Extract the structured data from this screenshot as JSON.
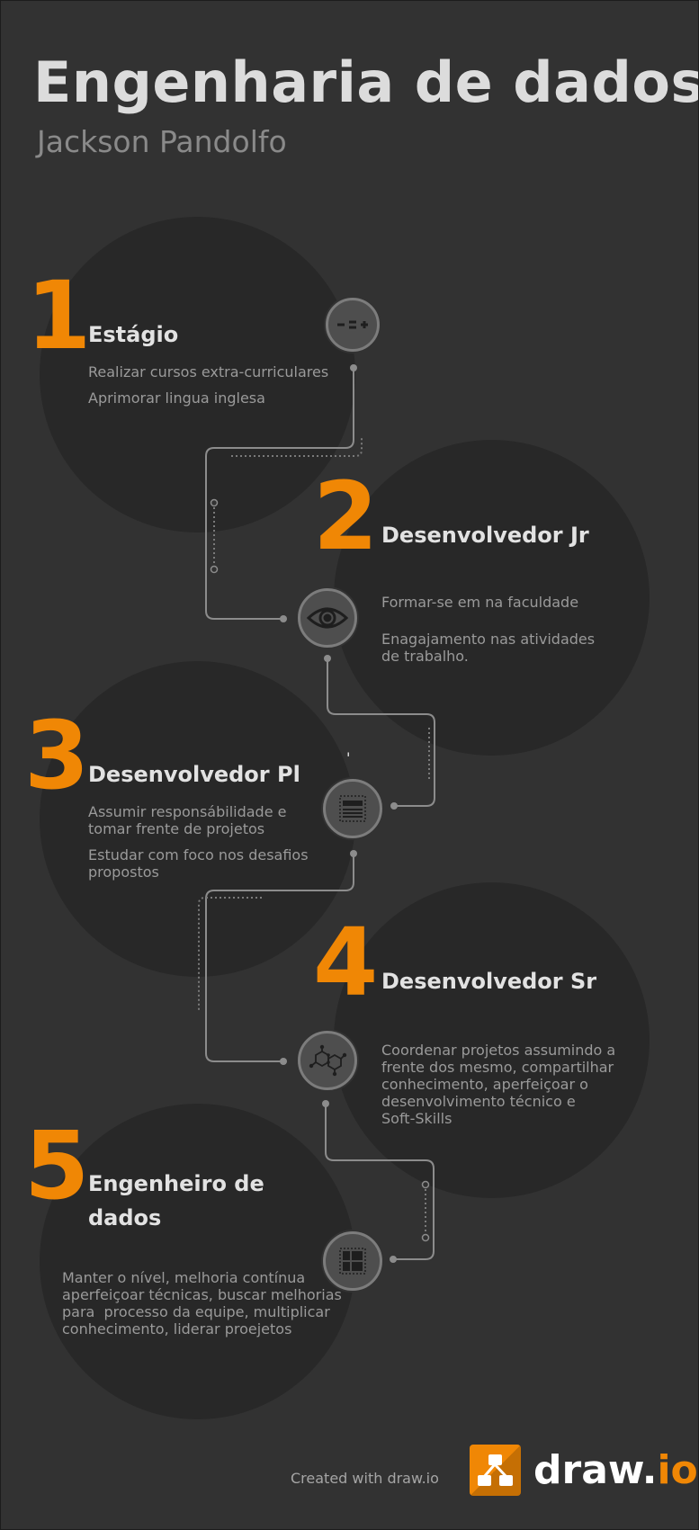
{
  "header": {
    "title": "Engenharia de dados",
    "subtitle": "Jackson Pandolfo"
  },
  "steps": [
    {
      "number": "1",
      "title": "Estágio",
      "items": [
        "Realizar cursos extra-curriculares",
        "Aprimorar lingua inglesa"
      ],
      "icon": "calculator-signs-icon"
    },
    {
      "number": "2",
      "title": "Desenvolvedor Jr",
      "items": [
        "Formar-se em na faculdade",
        "Enagajamento nas atividades\nde trabalho."
      ],
      "icon": "eye-icon"
    },
    {
      "number": "3",
      "title": "Desenvolvedor Pl",
      "items": [
        "Assumir responsábilidade e\ntomar frente de projetos",
        "Estudar com foco nos desafios\npropostos"
      ],
      "icon": "document-layout-icon",
      "stray_mark": "'"
    },
    {
      "number": "4",
      "title": "Desenvolvedor Sr",
      "items": [
        "Coordenar projetos assumindo a\nfrente dos mesmo, compartilhar\nconhecimento, aperfeiçoar o\ndesenvolvimento técnico e\nSoft-Skills"
      ],
      "icon": "molecule-icon"
    },
    {
      "number": "5",
      "title": "Engenheiro de\ndados",
      "items": [
        "Manter o nível, melhoria contínua\naperfeiçoar técnicas, buscar melhorias\npara  processo da equipe, multiplicar\nconhecimento, liderar proejetos"
      ],
      "icon": "grid-layout-icon"
    }
  ],
  "footer": {
    "created_with": "Created with draw.io",
    "logo_main": "draw.",
    "logo_suffix": "io"
  },
  "colors": {
    "background": "#323232",
    "circle": "#282828",
    "accent": "#f08705",
    "title": "#dcdcdc",
    "subtitle": "#8a8a8a",
    "heading": "#e2e2e2",
    "body_text": "#9a9a9a",
    "connector": "#8c8c8c"
  }
}
